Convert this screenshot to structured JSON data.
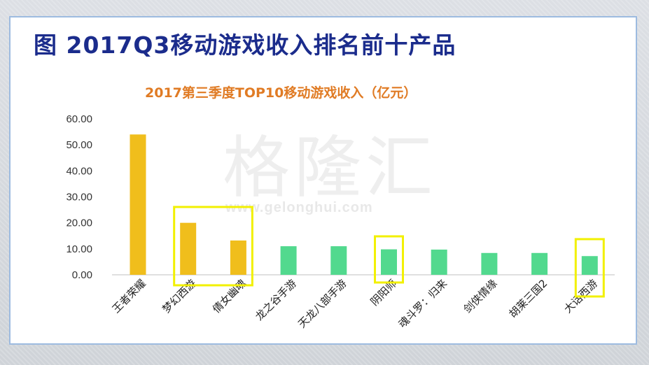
{
  "figure_title": "图 2017Q3移动游戏收入排名前十产品",
  "watermark": {
    "text": "格隆汇",
    "url": "www.gelonghui.com"
  },
  "chart_data": {
    "type": "bar",
    "title": "2017第三季度TOP10移动游戏收入（亿元）",
    "categories": [
      "王者荣耀",
      "梦幻西游",
      "倩女幽魂",
      "龙之谷手游",
      "天龙八部手游",
      "阴阳师",
      "魂斗罗：归来",
      "剑侠情缘",
      "胡莱三国2",
      "大话西游"
    ],
    "values": [
      54.0,
      20.0,
      13.2,
      11.0,
      11.0,
      9.8,
      9.7,
      8.4,
      8.4,
      7.2
    ],
    "bar_colors": [
      "#f0be1c",
      "#f0be1c",
      "#f0be1c",
      "#52d98e",
      "#52d98e",
      "#52d98e",
      "#52d98e",
      "#52d98e",
      "#52d98e",
      "#52d98e"
    ],
    "yticks": [
      "0.00",
      "10.00",
      "20.00",
      "30.00",
      "40.00",
      "50.00",
      "60.00"
    ],
    "ylim": [
      0,
      60
    ],
    "grid": false,
    "highlights": [
      {
        "categories": [
          "梦幻西游",
          "倩女幽魂"
        ],
        "color": "#f2f000"
      },
      {
        "categories": [
          "阴阳师"
        ],
        "color": "#f2f000"
      },
      {
        "categories": [
          "大话西游"
        ],
        "color": "#f2f000"
      }
    ]
  }
}
